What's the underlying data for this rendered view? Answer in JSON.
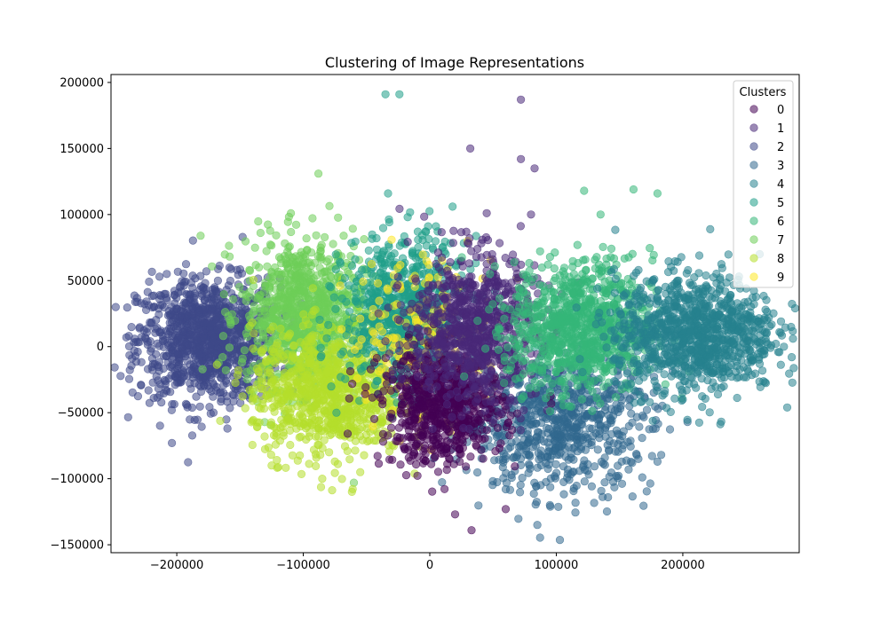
{
  "chart_data": {
    "type": "scatter",
    "title": "Clustering of Image Representations",
    "xlabel": "",
    "ylabel": "",
    "xlim": [
      -252000,
      292000
    ],
    "ylim": [
      -156000,
      206000
    ],
    "x_ticks": [
      -200000,
      -100000,
      0,
      100000,
      200000
    ],
    "x_tick_labels": [
      "−200000",
      "−100000",
      "0",
      "100000",
      "200000"
    ],
    "y_ticks": [
      -150000,
      -100000,
      -50000,
      0,
      50000,
      100000,
      150000,
      200000
    ],
    "y_tick_labels": [
      "−150000",
      "−100000",
      "−50000",
      "0",
      "50000",
      "100000",
      "150000",
      "200000"
    ],
    "grid": false,
    "legend": {
      "title": "Clusters",
      "placement": "top-right",
      "entries": [
        "0",
        "1",
        "2",
        "3",
        "4",
        "5",
        "6",
        "7",
        "8",
        "9"
      ]
    },
    "colors": [
      "#440154",
      "#482878",
      "#3e4989",
      "#31688e",
      "#26828e",
      "#1f9e89",
      "#35b779",
      "#6ece58",
      "#b5de2b",
      "#fde725"
    ],
    "marker_alpha": 0.55,
    "series": [
      {
        "name": "0",
        "cx": 10000,
        "cy": -45000,
        "sx": 24000,
        "sy": 22000,
        "n": 700,
        "outliers": [
          [
            33000,
            -139000
          ],
          [
            20000,
            -127000
          ],
          [
            60000,
            -123000
          ]
        ]
      },
      {
        "name": "1",
        "cx": 35000,
        "cy": 15000,
        "sx": 25000,
        "sy": 28000,
        "n": 800,
        "outliers": [
          [
            72000,
            187000
          ],
          [
            32000,
            150000
          ],
          [
            72000,
            142000
          ],
          [
            45000,
            101000
          ],
          [
            80000,
            100000
          ]
        ]
      },
      {
        "name": "2",
        "cx": -175000,
        "cy": 5000,
        "sx": 28000,
        "sy": 23000,
        "n": 1100,
        "outliers": [
          [
            -148000,
            83000
          ],
          [
            -225000,
            7000
          ],
          [
            -160000,
            -62000
          ]
        ]
      },
      {
        "name": "3",
        "cx": 100000,
        "cy": -55000,
        "sx": 38000,
        "sy": 27000,
        "n": 800,
        "outliers": [
          [
            85000,
            -135000
          ],
          [
            95000,
            -120000
          ],
          [
            60000,
            -108000
          ],
          [
            160000,
            -88000
          ]
        ]
      },
      {
        "name": "4",
        "cx": 210000,
        "cy": 10000,
        "sx": 32000,
        "sy": 22000,
        "n": 1000,
        "outliers": [
          [
            213000,
            69000
          ],
          [
            268000,
            22000
          ],
          [
            200000,
            -40000
          ]
        ]
      },
      {
        "name": "5",
        "cx": -20000,
        "cy": 25000,
        "sx": 24000,
        "sy": 28000,
        "n": 800,
        "outliers": [
          [
            -35000,
            191000
          ],
          [
            -24000,
            191000
          ],
          [
            -33000,
            116000
          ],
          [
            18000,
            106000
          ]
        ]
      },
      {
        "name": "6",
        "cx": 120000,
        "cy": 15000,
        "sx": 28000,
        "sy": 25000,
        "n": 900,
        "outliers": [
          [
            161000,
            119000
          ],
          [
            180000,
            116000
          ],
          [
            122000,
            118000
          ],
          [
            135000,
            100000
          ]
        ]
      },
      {
        "name": "7",
        "cx": -100000,
        "cy": 25000,
        "sx": 24000,
        "sy": 28000,
        "n": 900,
        "outliers": [
          [
            -88000,
            131000
          ],
          [
            -135000,
            60000
          ],
          [
            -60000,
            -103000
          ]
        ]
      },
      {
        "name": "8",
        "cx": -80000,
        "cy": -35000,
        "sx": 30000,
        "sy": 24000,
        "n": 900,
        "outliers": [
          [
            -125000,
            -90000
          ],
          [
            -85000,
            -100000
          ],
          [
            -55000,
            -95000
          ]
        ]
      },
      {
        "name": "9",
        "cx": -5000,
        "cy": 10000,
        "sx": 30000,
        "sy": 30000,
        "n": 180,
        "outliers": [
          [
            30000,
            80000
          ],
          [
            -10000,
            -55000
          ],
          [
            45000,
            -40000
          ]
        ]
      }
    ]
  }
}
